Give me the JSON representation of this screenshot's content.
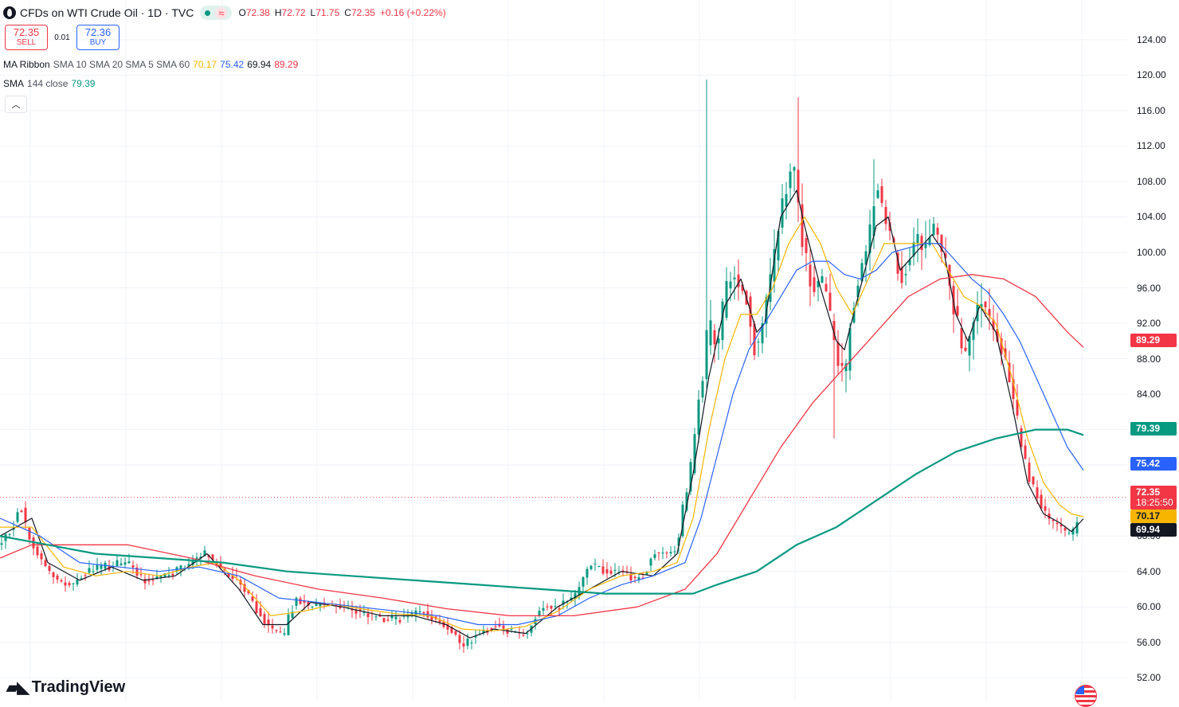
{
  "header": {
    "symbol_title": "CFDs on WTI Crude Oil · 1D · TVC",
    "open_label": "O",
    "open": "72.38",
    "high_label": "H",
    "high": "72.72",
    "low_label": "L",
    "low": "71.75",
    "close_label": "C",
    "close": "72.35",
    "change": "+0.16 (+0.22%)"
  },
  "trade": {
    "sell_price": "72.35",
    "sell_label": "SELL",
    "spread": "0.01",
    "buy_price": "72.36",
    "buy_label": "BUY"
  },
  "indicators": {
    "ma_ribbon": {
      "name": "MA Ribbon",
      "params": "SMA 10 SMA 20 SMA 5 SMA 60",
      "v1": "70.17",
      "v2": "75.42",
      "v3": "69.94",
      "v4": "89.29"
    },
    "sma144": {
      "name": "SMA",
      "params": "144 close",
      "value": "79.39"
    }
  },
  "axis_badges": {
    "sma60": "89.29",
    "sma144": "79.39",
    "sma20": "75.42",
    "last_price": "72.35",
    "countdown": "18:25:50",
    "sma10": "70.17",
    "sma5": "69.94"
  },
  "brand": {
    "name": "TradingView"
  },
  "colors": {
    "up": "#089981",
    "down": "#f23645",
    "sma5": "#131722",
    "sma10": "#f7b500",
    "sma20": "#2962ff",
    "sma60": "#f23645",
    "sma144": "#089981",
    "grid": "#f0f3fa"
  },
  "chart_data": {
    "type": "candlestick",
    "y_axis_ticks": [
      "124.00",
      "120.00",
      "116.00",
      "112.00",
      "108.00",
      "104.00",
      "100.00",
      "96.00",
      "92.00",
      "88.00",
      "84.00",
      "80.00",
      "76.00",
      "72.00",
      "68.00",
      "64.00",
      "60.00",
      "56.00",
      "52.00"
    ],
    "ylim": [
      50.5,
      126.5
    ],
    "x_labels": [],
    "grid": true,
    "current_price": 72.35,
    "path_anchors": [
      [
        0,
        67
      ],
      [
        15,
        69
      ],
      [
        25,
        71.5
      ],
      [
        35,
        68
      ],
      [
        50,
        65.5
      ],
      [
        70,
        63
      ],
      [
        90,
        62.5
      ],
      [
        110,
        64
      ],
      [
        130,
        64.5
      ],
      [
        160,
        65
      ],
      [
        180,
        63
      ],
      [
        200,
        63.5
      ],
      [
        220,
        64
      ],
      [
        260,
        66
      ],
      [
        280,
        64
      ],
      [
        300,
        63
      ],
      [
        320,
        60
      ],
      [
        340,
        57.5
      ],
      [
        355,
        56.5
      ],
      [
        370,
        61
      ],
      [
        390,
        60
      ],
      [
        410,
        60.5
      ],
      [
        430,
        60
      ],
      [
        450,
        59.5
      ],
      [
        470,
        59
      ],
      [
        490,
        58.5
      ],
      [
        510,
        59
      ],
      [
        530,
        59.5
      ],
      [
        550,
        58.5
      ],
      [
        570,
        57
      ],
      [
        580,
        55.5
      ],
      [
        600,
        57
      ],
      [
        620,
        58
      ],
      [
        650,
        57
      ],
      [
        660,
        57
      ],
      [
        680,
        60
      ],
      [
        700,
        60
      ],
      [
        720,
        61
      ],
      [
        740,
        65
      ],
      [
        760,
        64
      ],
      [
        780,
        64
      ],
      [
        800,
        63
      ],
      [
        810,
        64
      ],
      [
        820,
        66
      ],
      [
        840,
        66
      ],
      [
        850,
        67
      ],
      [
        860,
        72
      ],
      [
        870,
        77
      ],
      [
        880,
        85
      ],
      [
        890,
        92
      ],
      [
        900,
        89
      ],
      [
        910,
        95
      ],
      [
        920,
        98
      ],
      [
        930,
        96
      ],
      [
        940,
        94
      ],
      [
        950,
        88
      ],
      [
        960,
        93
      ],
      [
        970,
        98
      ],
      [
        980,
        104
      ],
      [
        990,
        108
      ],
      [
        995,
        111
      ],
      [
        1000,
        107
      ],
      [
        1010,
        100
      ],
      [
        1020,
        96
      ],
      [
        1030,
        97
      ],
      [
        1040,
        94
      ],
      [
        1050,
        88
      ],
      [
        1060,
        86
      ],
      [
        1070,
        94
      ],
      [
        1080,
        98
      ],
      [
        1090,
        101
      ],
      [
        1100,
        108
      ],
      [
        1110,
        104
      ],
      [
        1120,
        101
      ],
      [
        1130,
        97
      ],
      [
        1140,
        99
      ],
      [
        1150,
        102
      ],
      [
        1160,
        100
      ],
      [
        1170,
        103
      ],
      [
        1180,
        101
      ],
      [
        1190,
        97
      ],
      [
        1200,
        92
      ],
      [
        1210,
        88
      ],
      [
        1220,
        91
      ],
      [
        1230,
        95
      ],
      [
        1240,
        93
      ],
      [
        1250,
        91
      ],
      [
        1260,
        88
      ],
      [
        1270,
        84
      ],
      [
        1280,
        79
      ],
      [
        1290,
        75
      ],
      [
        1300,
        73
      ],
      [
        1310,
        71
      ],
      [
        1320,
        69.5
      ],
      [
        1330,
        69
      ],
      [
        1340,
        68
      ],
      [
        1350,
        69
      ],
      [
        1355,
        72.35
      ]
    ],
    "spikes": [
      {
        "x": 889,
        "high": 119.5
      },
      {
        "x": 1001,
        "high": 117.5
      },
      {
        "x": 1048,
        "low": 79
      },
      {
        "x": 1098,
        "high": 110.5
      }
    ],
    "series": [
      {
        "name": "SMA 5",
        "color": "#131722",
        "anchors": [
          [
            0,
            68
          ],
          [
            40,
            70
          ],
          [
            60,
            65
          ],
          [
            100,
            63
          ],
          [
            140,
            64.5
          ],
          [
            180,
            63
          ],
          [
            220,
            63.5
          ],
          [
            260,
            66
          ],
          [
            300,
            62
          ],
          [
            330,
            58
          ],
          [
            360,
            58
          ],
          [
            390,
            60.5
          ],
          [
            430,
            60
          ],
          [
            480,
            59
          ],
          [
            520,
            59
          ],
          [
            560,
            58
          ],
          [
            590,
            56.5
          ],
          [
            620,
            57.5
          ],
          [
            660,
            57
          ],
          [
            700,
            60
          ],
          [
            740,
            62
          ],
          [
            780,
            64
          ],
          [
            820,
            63.5
          ],
          [
            850,
            66
          ],
          [
            870,
            75
          ],
          [
            890,
            86
          ],
          [
            910,
            94
          ],
          [
            930,
            97
          ],
          [
            950,
            91
          ],
          [
            960,
            92
          ],
          [
            980,
            104
          ],
          [
            1000,
            107
          ],
          [
            1010,
            103
          ],
          [
            1030,
            96
          ],
          [
            1050,
            90
          ],
          [
            1060,
            89
          ],
          [
            1080,
            96
          ],
          [
            1100,
            103
          ],
          [
            1115,
            104
          ],
          [
            1130,
            98
          ],
          [
            1150,
            100
          ],
          [
            1170,
            102
          ],
          [
            1185,
            100
          ],
          [
            1200,
            93
          ],
          [
            1215,
            90
          ],
          [
            1230,
            94
          ],
          [
            1250,
            91
          ],
          [
            1270,
            83
          ],
          [
            1290,
            74
          ],
          [
            1310,
            70.5
          ],
          [
            1330,
            69.5
          ],
          [
            1345,
            68.5
          ],
          [
            1360,
            69.94
          ]
        ]
      },
      {
        "name": "SMA 10",
        "color": "#f7b500",
        "anchors": [
          [
            0,
            69
          ],
          [
            40,
            69
          ],
          [
            80,
            64.5
          ],
          [
            120,
            63.5
          ],
          [
            160,
            64
          ],
          [
            200,
            63.5
          ],
          [
            240,
            64.5
          ],
          [
            270,
            65
          ],
          [
            300,
            63
          ],
          [
            340,
            59
          ],
          [
            380,
            59.5
          ],
          [
            420,
            60.3
          ],
          [
            460,
            59.7
          ],
          [
            500,
            59.2
          ],
          [
            540,
            59
          ],
          [
            580,
            57.5
          ],
          [
            620,
            57.3
          ],
          [
            660,
            57.8
          ],
          [
            700,
            59.5
          ],
          [
            740,
            62
          ],
          [
            780,
            63.5
          ],
          [
            820,
            64
          ],
          [
            850,
            65
          ],
          [
            870,
            70
          ],
          [
            890,
            80
          ],
          [
            910,
            88
          ],
          [
            930,
            93
          ],
          [
            950,
            93
          ],
          [
            970,
            96
          ],
          [
            990,
            101
          ],
          [
            1010,
            104
          ],
          [
            1030,
            101
          ],
          [
            1050,
            96
          ],
          [
            1070,
            93
          ],
          [
            1090,
            97
          ],
          [
            1110,
            101
          ],
          [
            1130,
            101
          ],
          [
            1150,
            101
          ],
          [
            1170,
            101
          ],
          [
            1190,
            98
          ],
          [
            1210,
            95
          ],
          [
            1230,
            94
          ],
          [
            1250,
            92
          ],
          [
            1270,
            86
          ],
          [
            1290,
            79
          ],
          [
            1310,
            74
          ],
          [
            1330,
            71.5
          ],
          [
            1345,
            70.5
          ],
          [
            1360,
            70.17
          ]
        ]
      },
      {
        "name": "SMA 20",
        "color": "#2962ff",
        "anchors": [
          [
            0,
            70
          ],
          [
            50,
            68
          ],
          [
            100,
            65
          ],
          [
            150,
            64.5
          ],
          [
            200,
            64
          ],
          [
            250,
            64.5
          ],
          [
            300,
            63.5
          ],
          [
            350,
            61
          ],
          [
            400,
            60.5
          ],
          [
            450,
            60
          ],
          [
            500,
            59.5
          ],
          [
            550,
            59
          ],
          [
            600,
            58
          ],
          [
            650,
            58
          ],
          [
            700,
            59
          ],
          [
            740,
            61
          ],
          [
            780,
            62.5
          ],
          [
            820,
            63.5
          ],
          [
            860,
            65
          ],
          [
            880,
            70
          ],
          [
            900,
            77
          ],
          [
            920,
            84
          ],
          [
            940,
            89
          ],
          [
            960,
            92
          ],
          [
            980,
            95
          ],
          [
            1000,
            98
          ],
          [
            1020,
            99
          ],
          [
            1040,
            99
          ],
          [
            1060,
            97.5
          ],
          [
            1080,
            97
          ],
          [
            1100,
            98
          ],
          [
            1120,
            100
          ],
          [
            1140,
            100.5
          ],
          [
            1160,
            101
          ],
          [
            1180,
            101
          ],
          [
            1200,
            99
          ],
          [
            1220,
            97
          ],
          [
            1240,
            95.5
          ],
          [
            1260,
            93
          ],
          [
            1280,
            90
          ],
          [
            1300,
            86
          ],
          [
            1320,
            82
          ],
          [
            1340,
            78
          ],
          [
            1360,
            75.42
          ]
        ]
      },
      {
        "name": "SMA 60",
        "color": "#f23645",
        "anchors": [
          [
            0,
            65.5
          ],
          [
            40,
            67
          ],
          [
            80,
            67
          ],
          [
            160,
            67
          ],
          [
            240,
            65.5
          ],
          [
            320,
            63.5
          ],
          [
            400,
            62
          ],
          [
            480,
            61
          ],
          [
            560,
            59.8
          ],
          [
            640,
            59
          ],
          [
            720,
            59
          ],
          [
            800,
            60
          ],
          [
            860,
            62
          ],
          [
            900,
            66
          ],
          [
            940,
            72
          ],
          [
            980,
            78
          ],
          [
            1020,
            83
          ],
          [
            1060,
            87
          ],
          [
            1100,
            91
          ],
          [
            1140,
            95
          ],
          [
            1180,
            97
          ],
          [
            1220,
            97.5
          ],
          [
            1260,
            97
          ],
          [
            1300,
            95
          ],
          [
            1340,
            91
          ],
          [
            1360,
            89.29
          ]
        ]
      },
      {
        "name": "SMA 144",
        "color": "#089981",
        "anchors": [
          [
            0,
            68
          ],
          [
            60,
            67
          ],
          [
            120,
            66
          ],
          [
            200,
            65.5
          ],
          [
            280,
            65
          ],
          [
            360,
            64
          ],
          [
            440,
            63.5
          ],
          [
            520,
            63
          ],
          [
            600,
            62.5
          ],
          [
            680,
            62
          ],
          [
            760,
            61.5
          ],
          [
            820,
            61.5
          ],
          [
            870,
            61.5
          ],
          [
            900,
            62.5
          ],
          [
            950,
            64
          ],
          [
            1000,
            67
          ],
          [
            1050,
            69
          ],
          [
            1100,
            72
          ],
          [
            1150,
            75
          ],
          [
            1200,
            77.5
          ],
          [
            1250,
            79
          ],
          [
            1300,
            80
          ],
          [
            1340,
            80
          ],
          [
            1360,
            79.39
          ]
        ]
      }
    ]
  }
}
